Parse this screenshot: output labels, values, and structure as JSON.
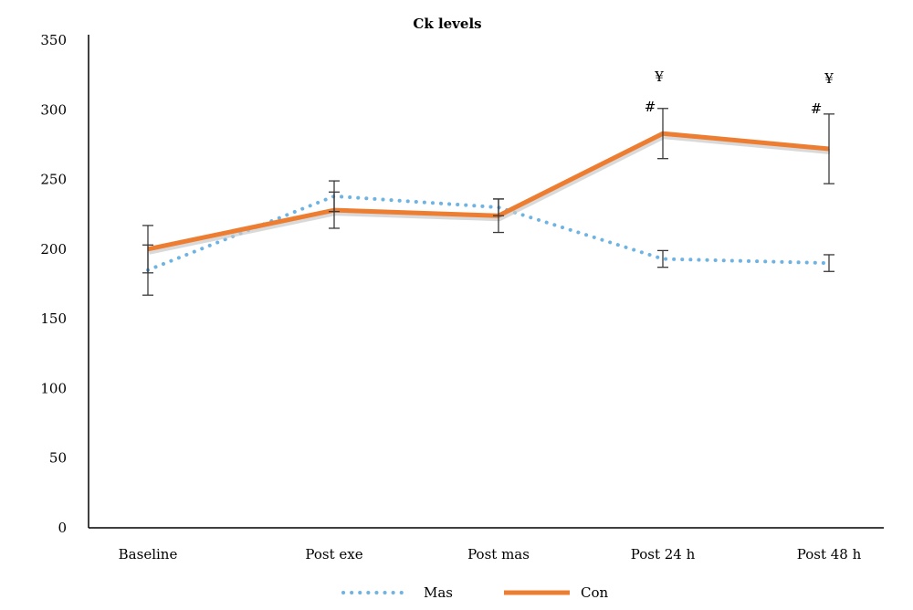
{
  "chart_data": {
    "type": "line",
    "title": "Ck levels",
    "xlabel": "",
    "ylabel": "",
    "categories": [
      "Baseline",
      "Post exe",
      "Post mas",
      "Post 24 h",
      "Post 48 h"
    ],
    "ylim": [
      0,
      350
    ],
    "yticks": [
      0,
      50,
      100,
      150,
      200,
      250,
      300,
      350
    ],
    "grid": false,
    "legend_position": "bottom",
    "series": [
      {
        "name": "Mas",
        "style": "dotted",
        "color": "#6fb3e3",
        "values": [
          185,
          238,
          230,
          193,
          190
        ],
        "error": [
          18,
          11,
          6,
          6,
          6
        ]
      },
      {
        "name": "Con",
        "style": "solid",
        "color": "#ed7d31",
        "values": [
          200,
          228,
          224,
          283,
          272
        ],
        "error": [
          17,
          13,
          12,
          18,
          25
        ]
      }
    ],
    "annotations": [
      {
        "category": "Post 24 h",
        "labels": [
          "#",
          "¥"
        ]
      },
      {
        "category": "Post 48 h",
        "labels": [
          "#",
          "¥"
        ]
      }
    ]
  }
}
